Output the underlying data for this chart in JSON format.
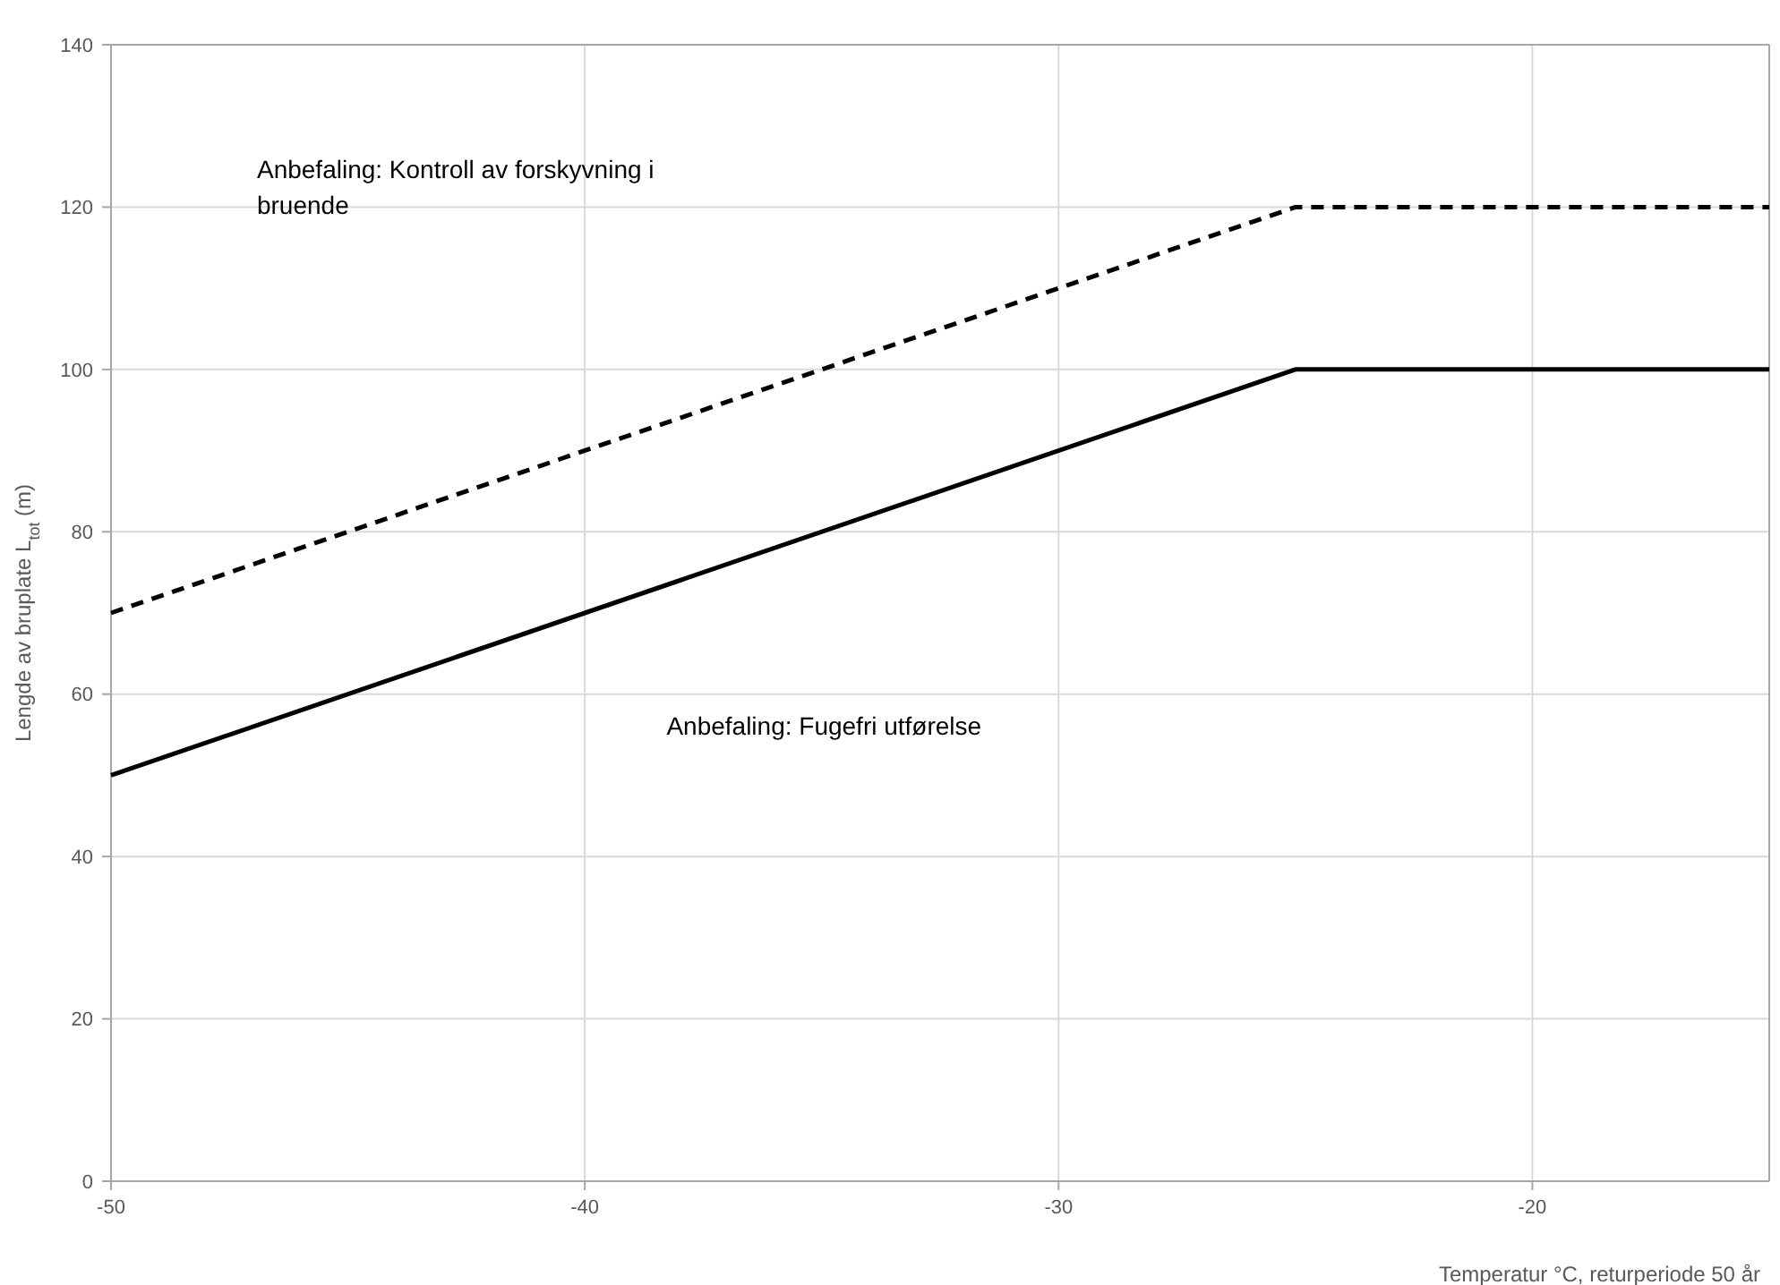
{
  "chart_data": {
    "type": "line",
    "xlabel": "Temperatur °C, returperiode 50 år",
    "ylabel": "Lengde av bruplate L$_{tot}$ (m)",
    "xlim": [
      -50,
      -15
    ],
    "xticks": [
      -50,
      -40,
      -30,
      -20
    ],
    "ylim": [
      0,
      140
    ],
    "yticks": [
      0,
      20,
      40,
      60,
      80,
      100,
      120,
      140
    ],
    "grid": true,
    "marker": "none",
    "series": [
      {
        "color": "#000000",
        "line_style": "solid",
        "x": [
          -50,
          -25,
          -15
        ],
        "values": [
          50,
          100,
          100
        ]
      },
      {
        "color": "#000000",
        "line_style": "dashed",
        "x": [
          -50,
          -25,
          -15
        ],
        "values": [
          70,
          120,
          120
        ]
      }
    ],
    "annotations": [
      "Anbefaling: Kontroll av forskyvning i bruende",
      "Anbefaling: Fugefri utførelse"
    ]
  }
}
